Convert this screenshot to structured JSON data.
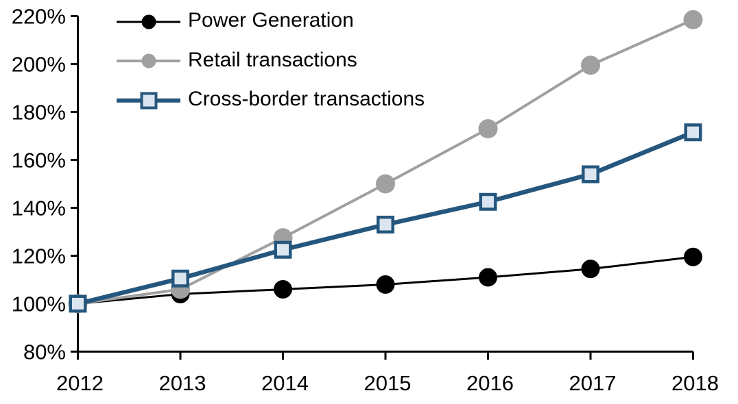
{
  "page": {
    "background_color": "#ffffff",
    "text_color": "#000000"
  },
  "chart_data": {
    "type": "line",
    "title": "",
    "xlabel": "",
    "ylabel": "",
    "x_categories": [
      "2012",
      "2013",
      "2014",
      "2015",
      "2016",
      "2017",
      "2018"
    ],
    "y_tick_labels": [
      "80%",
      "100%",
      "120%",
      "140%",
      "160%",
      "180%",
      "200%",
      "220%"
    ],
    "ylim": [
      80,
      220
    ],
    "ytick_step": 20,
    "grid": false,
    "legend_position": "top-left",
    "axis_color": "#000000",
    "series": [
      {
        "name": "Power Generation",
        "values": [
          100,
          104,
          106,
          108,
          111,
          114.5,
          119.5
        ],
        "line_color": "#000000",
        "line_width": 3,
        "marker": "circle",
        "marker_fill": "#000000",
        "marker_stroke": "none",
        "marker_size": 27
      },
      {
        "name": "Retail transactions",
        "values": [
          100,
          106,
          127.5,
          150,
          173,
          199.5,
          218.5
        ],
        "line_color": "#A0A0A0",
        "line_width": 4,
        "marker": "circle",
        "marker_fill": "#A0A0A0",
        "marker_stroke": "none",
        "marker_size": 28
      },
      {
        "name": "Cross-border transactions",
        "values": [
          100,
          110.5,
          122.5,
          133,
          142.5,
          154,
          171.5
        ],
        "line_color": "#25577E",
        "line_width": 6.5,
        "marker": "square",
        "marker_fill": "#DCE6F1",
        "marker_stroke": "#25577E",
        "marker_size": 26
      }
    ]
  }
}
